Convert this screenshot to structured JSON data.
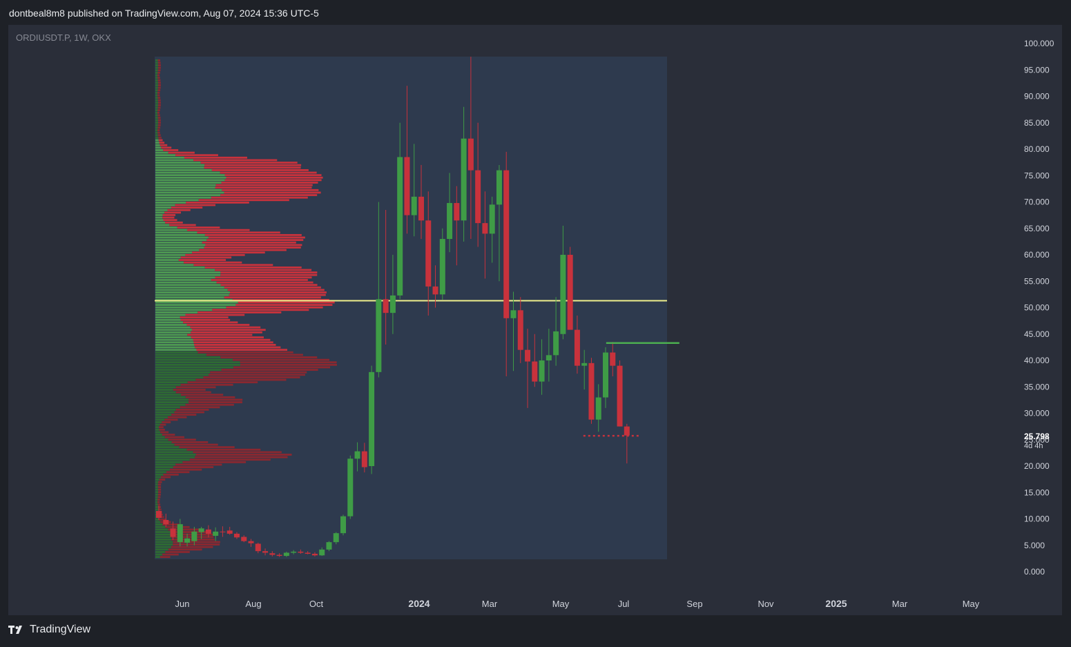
{
  "header": {
    "published_text": "dontbeal8m8 published on TradingView.com, Aug 07, 2024 15:36 UTC-5"
  },
  "symbol_label": "ORDIUSDT.P, 1W, OKX",
  "last_price": {
    "value": "25.798",
    "countdown": "4d 4h"
  },
  "footer": {
    "brand": "TradingView",
    "logo_icon": "tradingview-logo-icon"
  },
  "colors": {
    "up": "#3f9c46",
    "down": "#c8323c",
    "poc_line": "#f0f08c",
    "level_line": "#4caf50",
    "profile_bg": "#2e3a4e"
  },
  "chart_data": {
    "type": "candlestick",
    "title": "ORDIUSDT.P, 1W, OKX",
    "ylim": [
      0,
      100
    ],
    "y_ticks": [
      "0.000",
      "5.000",
      "10.000",
      "15.000",
      "20.000",
      "25.000",
      "30.000",
      "35.000",
      "40.000",
      "45.000",
      "50.000",
      "55.000",
      "60.000",
      "65.000",
      "70.000",
      "75.000",
      "80.000",
      "85.000",
      "90.000",
      "95.000",
      "100.000"
    ],
    "x_ticks": [
      "Jun",
      "Aug",
      "Oct",
      "2024",
      "Mar",
      "May",
      "Jul",
      "Sep",
      "Nov",
      "2025",
      "Mar",
      "May"
    ],
    "candles": [
      {
        "o": 11.5,
        "h": 12.5,
        "l": 9.8,
        "c": 10.2
      },
      {
        "o": 9.8,
        "h": 11.0,
        "l": 8.5,
        "c": 9.0
      },
      {
        "o": 8.2,
        "h": 9.5,
        "l": 6.0,
        "c": 6.6
      },
      {
        "o": 5.6,
        "h": 10.0,
        "l": 4.8,
        "c": 9.0
      },
      {
        "o": 5.5,
        "h": 7.2,
        "l": 4.8,
        "c": 6.3
      },
      {
        "o": 5.8,
        "h": 8.5,
        "l": 5.0,
        "c": 7.6
      },
      {
        "o": 7.5,
        "h": 8.5,
        "l": 6.2,
        "c": 8.2
      },
      {
        "o": 8.0,
        "h": 8.8,
        "l": 6.5,
        "c": 7.2
      },
      {
        "o": 6.8,
        "h": 8.4,
        "l": 5.8,
        "c": 7.6
      },
      {
        "o": 7.6,
        "h": 8.6,
        "l": 6.6,
        "c": 7.5
      },
      {
        "o": 7.8,
        "h": 8.5,
        "l": 7.0,
        "c": 7.2
      },
      {
        "o": 7.2,
        "h": 7.5,
        "l": 6.2,
        "c": 6.5
      },
      {
        "o": 6.6,
        "h": 6.9,
        "l": 5.6,
        "c": 5.8
      },
      {
        "o": 5.8,
        "h": 6.2,
        "l": 4.7,
        "c": 5.4
      },
      {
        "o": 5.3,
        "h": 5.5,
        "l": 3.5,
        "c": 3.9
      },
      {
        "o": 3.9,
        "h": 4.4,
        "l": 3.1,
        "c": 3.6
      },
      {
        "o": 3.5,
        "h": 3.9,
        "l": 2.9,
        "c": 3.2
      },
      {
        "o": 3.2,
        "h": 3.5,
        "l": 2.8,
        "c": 3.0
      },
      {
        "o": 3.0,
        "h": 3.8,
        "l": 2.8,
        "c": 3.6
      },
      {
        "o": 3.6,
        "h": 4.1,
        "l": 3.3,
        "c": 3.8
      },
      {
        "o": 3.8,
        "h": 4.2,
        "l": 3.4,
        "c": 3.6
      },
      {
        "o": 3.6,
        "h": 3.9,
        "l": 3.3,
        "c": 3.4
      },
      {
        "o": 3.4,
        "h": 3.7,
        "l": 2.9,
        "c": 3.1
      },
      {
        "o": 3.1,
        "h": 4.6,
        "l": 3.0,
        "c": 4.2
      },
      {
        "o": 4.2,
        "h": 5.8,
        "l": 3.9,
        "c": 5.6
      },
      {
        "o": 5.6,
        "h": 7.5,
        "l": 5.2,
        "c": 7.3
      },
      {
        "o": 7.3,
        "h": 10.8,
        "l": 6.9,
        "c": 10.5
      },
      {
        "o": 10.5,
        "h": 22.0,
        "l": 10.0,
        "c": 21.4
      },
      {
        "o": 21.4,
        "h": 24.5,
        "l": 19.0,
        "c": 22.8
      },
      {
        "o": 22.8,
        "h": 24.4,
        "l": 18.8,
        "c": 19.8
      },
      {
        "o": 20.0,
        "h": 39.0,
        "l": 18.5,
        "c": 37.8
      },
      {
        "o": 37.8,
        "h": 70.0,
        "l": 36.8,
        "c": 51.6
      },
      {
        "o": 51.6,
        "h": 68.5,
        "l": 43.0,
        "c": 49.0
      },
      {
        "o": 49.0,
        "h": 60.0,
        "l": 45.0,
        "c": 52.3
      },
      {
        "o": 52.3,
        "h": 85.0,
        "l": 51.6,
        "c": 78.5
      },
      {
        "o": 78.5,
        "h": 92.0,
        "l": 64.0,
        "c": 67.5
      },
      {
        "o": 67.5,
        "h": 81.0,
        "l": 63.5,
        "c": 71.0
      },
      {
        "o": 71.0,
        "h": 77.0,
        "l": 63.0,
        "c": 66.5
      },
      {
        "o": 66.5,
        "h": 72.0,
        "l": 48.5,
        "c": 54.0
      },
      {
        "o": 54.0,
        "h": 58.0,
        "l": 50.0,
        "c": 52.5
      },
      {
        "o": 52.5,
        "h": 65.0,
        "l": 51.5,
        "c": 63.0
      },
      {
        "o": 63.0,
        "h": 75.5,
        "l": 60.5,
        "c": 69.8
      },
      {
        "o": 69.8,
        "h": 73.0,
        "l": 58.0,
        "c": 66.5
      },
      {
        "o": 66.5,
        "h": 88.0,
        "l": 62.5,
        "c": 82.0
      },
      {
        "o": 82.0,
        "h": 97.5,
        "l": 63.0,
        "c": 76.0
      },
      {
        "o": 76.0,
        "h": 85.0,
        "l": 61.5,
        "c": 66.0
      },
      {
        "o": 66.0,
        "h": 72.0,
        "l": 55.5,
        "c": 64.0
      },
      {
        "o": 64.0,
        "h": 71.0,
        "l": 58.5,
        "c": 69.5
      },
      {
        "o": 69.5,
        "h": 77.0,
        "l": 55.0,
        "c": 76.0
      },
      {
        "o": 76.0,
        "h": 79.5,
        "l": 37.0,
        "c": 48.0
      },
      {
        "o": 48.0,
        "h": 53.0,
        "l": 38.0,
        "c": 49.5
      },
      {
        "o": 49.5,
        "h": 52.0,
        "l": 39.5,
        "c": 42.0
      },
      {
        "o": 42.0,
        "h": 46.0,
        "l": 31.0,
        "c": 39.8
      },
      {
        "o": 39.8,
        "h": 45.0,
        "l": 35.0,
        "c": 36.0
      },
      {
        "o": 36.0,
        "h": 44.0,
        "l": 33.5,
        "c": 40.0
      },
      {
        "o": 40.0,
        "h": 46.0,
        "l": 36.0,
        "c": 41.0
      },
      {
        "o": 41.0,
        "h": 52.0,
        "l": 39.0,
        "c": 45.5
      },
      {
        "o": 45.0,
        "h": 65.5,
        "l": 44.0,
        "c": 60.0
      },
      {
        "o": 60.0,
        "h": 61.5,
        "l": 46.0,
        "c": 45.8
      },
      {
        "o": 45.8,
        "h": 48.5,
        "l": 37.5,
        "c": 39.0
      },
      {
        "o": 39.0,
        "h": 42.0,
        "l": 34.5,
        "c": 39.5
      },
      {
        "o": 39.5,
        "h": 40.5,
        "l": 28.0,
        "c": 28.8
      },
      {
        "o": 28.8,
        "h": 35.5,
        "l": 26.5,
        "c": 33.0
      },
      {
        "o": 33.0,
        "h": 42.5,
        "l": 31.0,
        "c": 41.5
      },
      {
        "o": 41.5,
        "h": 43.5,
        "l": 37.0,
        "c": 39.0
      },
      {
        "o": 39.0,
        "h": 40.0,
        "l": 27.5,
        "c": 27.5
      },
      {
        "o": 27.5,
        "h": 28.0,
        "l": 20.5,
        "c": 25.8
      }
    ],
    "poc_price": 51.3,
    "resistance_level": 43.3,
    "last_price_level": 25.8,
    "volume_profile": {
      "price_from": 2.5,
      "price_to": 97.0,
      "bins": 200,
      "peaks": [
        {
          "price": 51.3,
          "up": 125,
          "down": 255
        },
        {
          "price": 72.0,
          "up": 95,
          "down": 205
        },
        {
          "price": 76.0,
          "up": 85,
          "down": 195
        },
        {
          "price": 62.5,
          "up": 85,
          "down": 175
        },
        {
          "price": 56.0,
          "up": 95,
          "down": 205
        },
        {
          "price": 45.0,
          "up": 55,
          "down": 115
        },
        {
          "price": 40.0,
          "up": 75,
          "down": 175
        },
        {
          "price": 38.0,
          "up": 65,
          "down": 155
        },
        {
          "price": 32.0,
          "up": 45,
          "down": 75
        },
        {
          "price": 22.0,
          "up": 55,
          "down": 135
        },
        {
          "price": 6.0,
          "up": 25,
          "down": 75
        }
      ]
    }
  }
}
